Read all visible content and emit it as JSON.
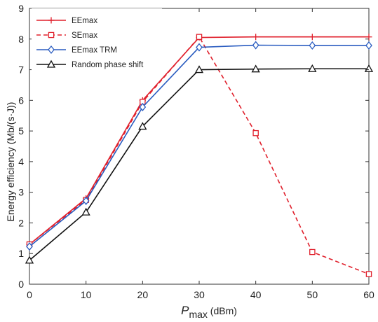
{
  "chart_data": {
    "type": "line",
    "x": [
      0,
      10,
      20,
      30,
      40,
      50,
      60
    ],
    "xlim": [
      0,
      60
    ],
    "ylim": [
      0,
      9
    ],
    "xticks": [
      "0",
      "10",
      "20",
      "30",
      "40",
      "50",
      "60"
    ],
    "yticks": [
      "0",
      "1",
      "2",
      "3",
      "4",
      "5",
      "6",
      "7",
      "8",
      "9"
    ],
    "xlabel_main": "P",
    "xlabel_sub": "max",
    "xlabel_unit": " (dBm)",
    "ylabel": "Energy efficiency (Mb/(s·J))",
    "grid": false,
    "legend_position": "top-left",
    "series": [
      {
        "name": "EEmax",
        "values": [
          1.3,
          2.8,
          6.0,
          8.05,
          8.07,
          8.07,
          8.07
        ],
        "color": "#e0202c",
        "marker": "plus",
        "dash": "solid"
      },
      {
        "name": "SEmax",
        "values": [
          1.3,
          2.75,
          5.95,
          8.07,
          4.93,
          1.05,
          0.33
        ],
        "color": "#e0202c",
        "marker": "square",
        "dash": "dashed"
      },
      {
        "name": "EEmax TRM",
        "values": [
          1.23,
          2.72,
          5.78,
          7.73,
          7.8,
          7.79,
          7.79
        ],
        "color": "#2a5cc0",
        "marker": "diamond",
        "dash": "solid"
      },
      {
        "name": "Random phase shift",
        "values": [
          0.78,
          2.35,
          5.15,
          7.0,
          7.02,
          7.03,
          7.03
        ],
        "color": "#111111",
        "marker": "triangle",
        "dash": "solid"
      }
    ]
  }
}
